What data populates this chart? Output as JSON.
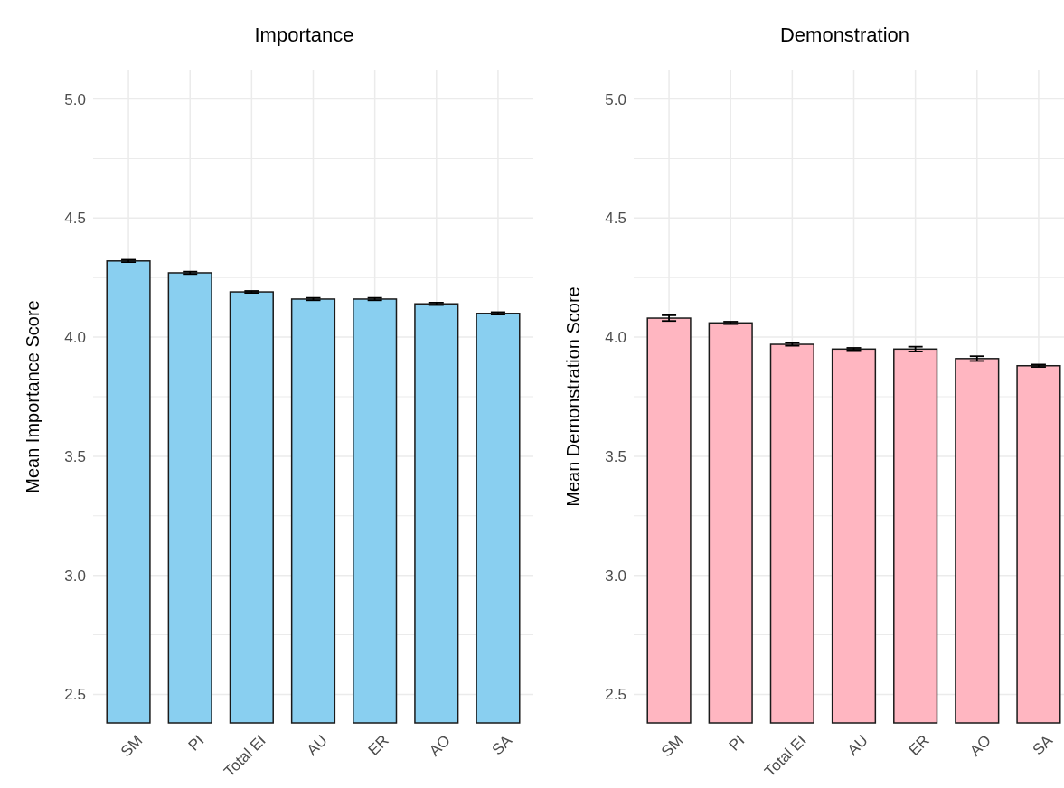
{
  "chart_data": [
    {
      "type": "bar",
      "title": "Importance",
      "ylabel": "Mean Importance Score",
      "categories": [
        "SM",
        "PI",
        "Total EI",
        "AU",
        "ER",
        "AO",
        "SA"
      ],
      "values": [
        4.32,
        4.27,
        4.19,
        4.16,
        4.16,
        4.14,
        4.1
      ],
      "errors": [
        0.005,
        0.005,
        0.004,
        0.005,
        0.005,
        0.005,
        0.005
      ],
      "color": "#89cff0",
      "ylim": [
        2.38,
        5.12
      ],
      "yticks": [
        {
          "value": 2.5,
          "label": "2.5"
        },
        {
          "value": 3,
          "label": "3.0"
        },
        {
          "value": 3.5,
          "label": "3.5"
        },
        {
          "value": 4,
          "label": "4.0"
        },
        {
          "value": 4.5,
          "label": "4.5"
        },
        {
          "value": 5,
          "label": "5.0"
        }
      ],
      "grid": true
    },
    {
      "type": "bar",
      "title": "Demonstration",
      "ylabel": "Mean Demonstration Score",
      "categories": [
        "SM",
        "PI",
        "Total EI",
        "AU",
        "ER",
        "AO",
        "SA"
      ],
      "values": [
        4.08,
        4.06,
        3.97,
        3.95,
        3.95,
        3.91,
        3.88
      ],
      "errors": [
        0.012,
        0.005,
        0.006,
        0.005,
        0.01,
        0.01,
        0.005
      ],
      "color": "#ffb6c1",
      "ylim": [
        2.38,
        5.12
      ],
      "yticks": [
        {
          "value": 2.5,
          "label": "2.5"
        },
        {
          "value": 3,
          "label": "3.0"
        },
        {
          "value": 3.5,
          "label": "3.5"
        },
        {
          "value": 4,
          "label": "4.0"
        },
        {
          "value": 4.5,
          "label": "4.5"
        },
        {
          "value": 5,
          "label": "5.0"
        }
      ],
      "grid": true
    }
  ]
}
